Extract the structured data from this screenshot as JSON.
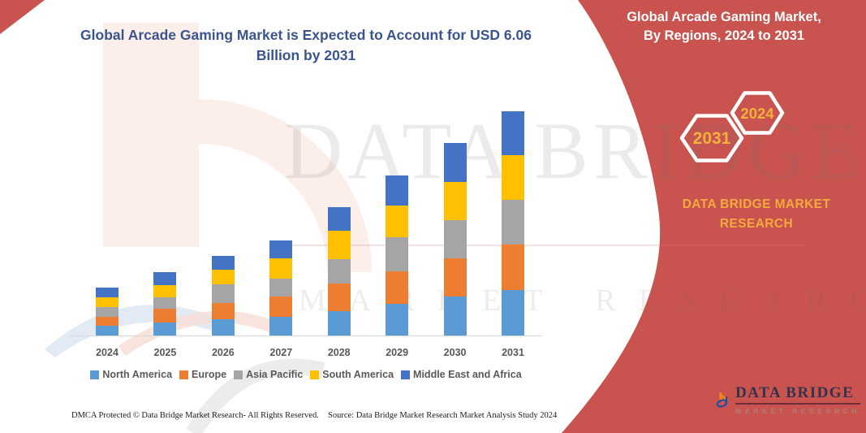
{
  "title": {
    "text": "Global Arcade Gaming Market is Expected to Account for USD 6.06 Billion by 2031"
  },
  "banner": {
    "heading_line1": "Global Arcade Gaming Market,",
    "heading_line2": "By Regions, 2024 to 2031",
    "hexagon_left_year": "2031",
    "hexagon_right_year": "2024",
    "brand_line1": "DATA BRIDGE MARKET",
    "brand_line2": "RESEARCH",
    "background_color": "#C9534E",
    "accent_text_color": "#F4AA3D"
  },
  "watermark": {
    "line1": "DATA BRIDGE",
    "line2": "MARKET RESEARCH"
  },
  "chart_data": {
    "type": "bar",
    "stacked": true,
    "title": "Global Arcade Gaming Market is Expected to Account for USD 6.06 Billion by 2031",
    "unit": "USD Billion",
    "categories": [
      "2024",
      "2025",
      "2026",
      "2027",
      "2028",
      "2029",
      "2030",
      "2031"
    ],
    "series": [
      {
        "name": "North America",
        "color": "#5B9BD5",
        "values": [
          0.26,
          0.35,
          0.43,
          0.51,
          0.66,
          0.85,
          1.05,
          1.22
        ]
      },
      {
        "name": "Europe",
        "color": "#ED7D31",
        "values": [
          0.24,
          0.37,
          0.45,
          0.55,
          0.74,
          0.88,
          1.03,
          1.24
        ]
      },
      {
        "name": "Asia Pacific",
        "color": "#A5A5A5",
        "values": [
          0.27,
          0.32,
          0.51,
          0.48,
          0.66,
          0.93,
          1.04,
          1.21
        ]
      },
      {
        "name": "South America",
        "color": "#FFC000",
        "values": [
          0.26,
          0.33,
          0.39,
          0.55,
          0.77,
          0.86,
          1.03,
          1.2
        ]
      },
      {
        "name": "Middle East and Africa",
        "color": "#4472C4",
        "values": [
          0.27,
          0.35,
          0.38,
          0.48,
          0.64,
          0.81,
          1.06,
          1.19
        ]
      }
    ],
    "totals": [
      1.3,
      1.72,
      2.16,
      2.57,
      3.47,
      4.33,
      5.21,
      6.06
    ],
    "ylim": [
      0,
      6.5
    ],
    "grid": false,
    "legend_position": "bottom",
    "xlabel": "",
    "ylabel": ""
  },
  "footer": {
    "left": "DMCA Protected © Data Bridge Market Research-  All Rights Reserved.",
    "source": "Source: Data Bridge Market Research  Market Analysis Study 2024"
  },
  "logo": {
    "name_line": "DATA BRIDGE",
    "sub_line": "MARKET RESEARCH"
  }
}
